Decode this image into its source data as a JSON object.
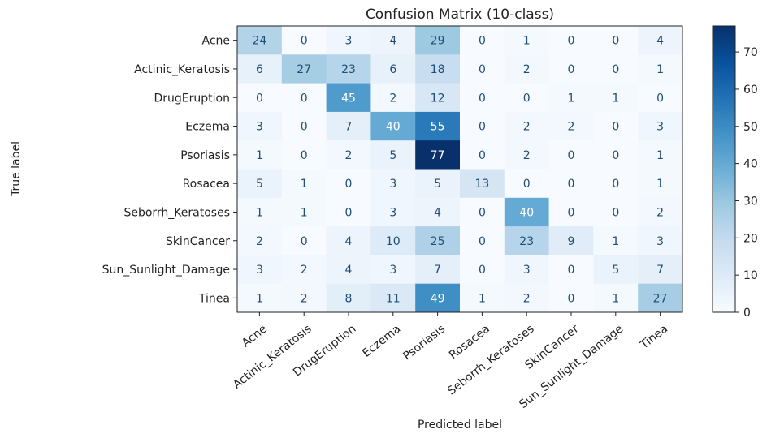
{
  "chart_data": {
    "type": "heatmap",
    "title": "Confusion Matrix (10-class)",
    "xlabel": "Predicted label",
    "ylabel": "True label",
    "row_labels": [
      "Acne",
      "Actinic_Keratosis",
      "DrugEruption",
      "Eczema",
      "Psoriasis",
      "Rosacea",
      "Seborrh_Keratoses",
      "SkinCancer",
      "Sun_Sunlight_Damage",
      "Tinea"
    ],
    "col_labels": [
      "Acne",
      "Actinic_Keratosis",
      "DrugEruption",
      "Eczema",
      "Psoriasis",
      "Rosacea",
      "Seborrh_Keratoses",
      "SkinCancer",
      "Sun_Sunlight_Damage",
      "Tinea"
    ],
    "values": [
      [
        24,
        0,
        3,
        4,
        29,
        0,
        1,
        0,
        0,
        4
      ],
      [
        6,
        27,
        23,
        6,
        18,
        0,
        2,
        0,
        0,
        1
      ],
      [
        0,
        0,
        45,
        2,
        12,
        0,
        0,
        1,
        1,
        0
      ],
      [
        3,
        0,
        7,
        40,
        55,
        0,
        2,
        2,
        0,
        3
      ],
      [
        1,
        0,
        2,
        5,
        77,
        0,
        2,
        0,
        0,
        1
      ],
      [
        5,
        1,
        0,
        3,
        5,
        13,
        0,
        0,
        0,
        1
      ],
      [
        1,
        1,
        0,
        3,
        4,
        0,
        40,
        0,
        0,
        2
      ],
      [
        2,
        0,
        4,
        10,
        25,
        0,
        23,
        9,
        1,
        3
      ],
      [
        3,
        2,
        4,
        3,
        7,
        0,
        3,
        0,
        5,
        7
      ],
      [
        1,
        2,
        8,
        11,
        49,
        1,
        2,
        0,
        1,
        27
      ]
    ],
    "colormap": "Blues",
    "vmin": 0,
    "vmax": 77,
    "colorbar_ticks": [
      0,
      10,
      20,
      30,
      40,
      50,
      60,
      70
    ],
    "colorbar_position": "right"
  }
}
